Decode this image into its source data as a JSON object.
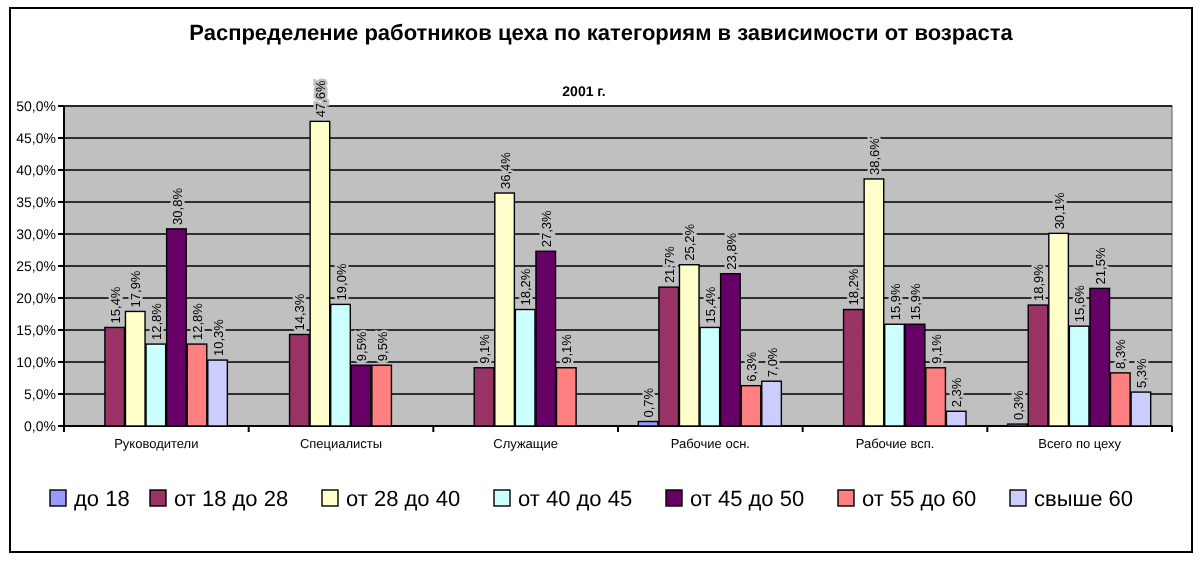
{
  "chart_data": {
    "type": "bar",
    "title": "Распределение работников цеха по категориям в зависимости от возраста",
    "subtitle": "2001 г.",
    "categories": [
      "Руководители",
      "Специалисты",
      "Служащие",
      "Рабочие осн.",
      "Рабочие всп.",
      "Всего по цеху"
    ],
    "series": [
      {
        "name": "до 18",
        "color": "#9999ff",
        "values": [
          null,
          null,
          null,
          0.7,
          null,
          0.3
        ],
        "value_labels": [
          null,
          null,
          null,
          "0,7%",
          null,
          "0,3%"
        ]
      },
      {
        "name": "от 18 до 28",
        "color": "#993366",
        "values": [
          15.4,
          14.3,
          9.1,
          21.7,
          18.2,
          18.9
        ],
        "value_labels": [
          "15,4%",
          "14,3%",
          "9,1%",
          "21,7%",
          "18,2%",
          "18,9%"
        ]
      },
      {
        "name": "от 28 до 40",
        "color": "#ffffcc",
        "values": [
          17.9,
          47.6,
          36.4,
          25.2,
          38.6,
          30.1
        ],
        "value_labels": [
          "17,9%",
          "47,6%",
          "36,4%",
          "25,2%",
          "38,6%",
          "30,1%"
        ]
      },
      {
        "name": "от 40 до 45",
        "color": "#ccffff",
        "values": [
          12.8,
          19.0,
          18.2,
          15.4,
          15.9,
          15.6
        ],
        "value_labels": [
          "12,8%",
          "19,0%",
          "18,2%",
          "15,4%",
          "15,9%",
          "15,6%"
        ]
      },
      {
        "name": "от 45 до 50",
        "color": "#660066",
        "values": [
          30.8,
          9.5,
          27.3,
          23.8,
          15.9,
          21.5
        ],
        "value_labels": [
          "30,8%",
          "9,5%",
          "27,3%",
          "23,8%",
          "15,9%",
          "21,5%"
        ]
      },
      {
        "name": "от 55 до 60",
        "color": "#ff8080",
        "values": [
          12.8,
          9.5,
          9.1,
          6.3,
          9.1,
          8.3
        ],
        "value_labels": [
          "12,8%",
          "9,5%",
          "9,1%",
          "6,3%",
          "9,1%",
          "8,3%"
        ]
      },
      {
        "name": "свыше 60",
        "color": "#ccccff",
        "values": [
          10.3,
          null,
          null,
          7.0,
          2.3,
          5.3
        ],
        "value_labels": [
          "10,3%",
          null,
          null,
          "7,0%",
          "2,3%",
          "5,3%"
        ]
      }
    ],
    "ylim": [
      0,
      50
    ],
    "yticks": [
      {
        "value": 0,
        "label": "0,0%"
      },
      {
        "value": 5,
        "label": "5,0%"
      },
      {
        "value": 10,
        "label": "10,0%"
      },
      {
        "value": 15,
        "label": "15,0%"
      },
      {
        "value": 20,
        "label": "20,0%"
      },
      {
        "value": 25,
        "label": "25,0%"
      },
      {
        "value": 30,
        "label": "30,0%"
      },
      {
        "value": 35,
        "label": "35,0%"
      },
      {
        "value": 40,
        "label": "40,0%"
      },
      {
        "value": 45,
        "label": "45,0%"
      },
      {
        "value": 50,
        "label": "50,0%"
      }
    ],
    "grid": "y",
    "legend": "bottom"
  }
}
